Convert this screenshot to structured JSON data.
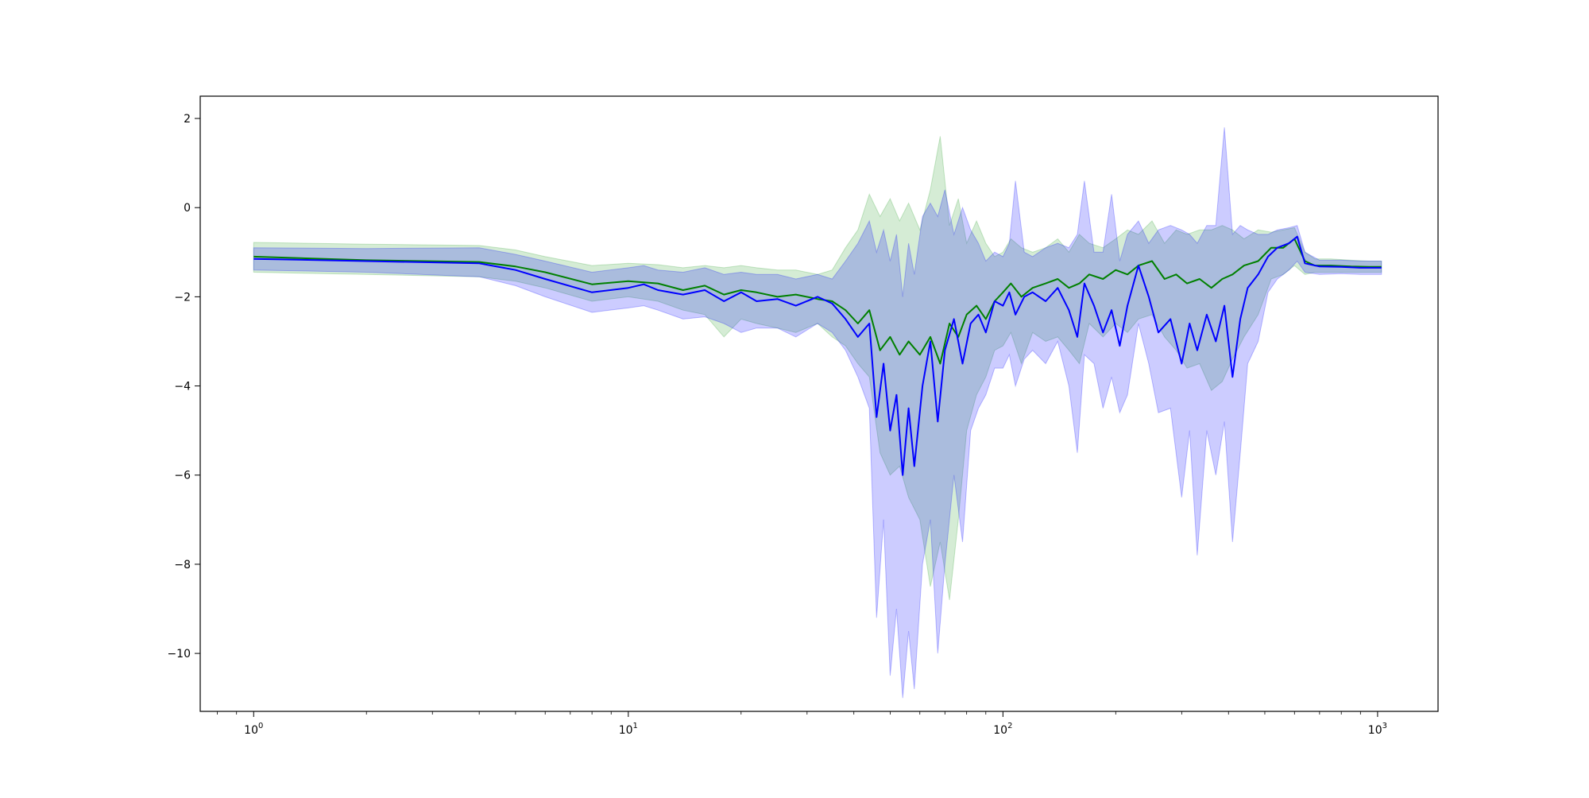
{
  "chart_data": {
    "type": "line",
    "title": "",
    "xlabel": "",
    "ylabel": "",
    "xscale": "log",
    "xlim": [
      0.72,
      1450
    ],
    "ylim": [
      -11.3,
      2.5
    ],
    "grid": false,
    "legend": "none",
    "x_ticks": [
      {
        "value": 1,
        "base": "10",
        "exp": "0"
      },
      {
        "value": 10,
        "base": "10",
        "exp": "1"
      },
      {
        "value": 100,
        "base": "10",
        "exp": "2"
      },
      {
        "value": 1000,
        "base": "10",
        "exp": "3"
      }
    ],
    "y_ticks": [
      {
        "value": 2,
        "label": "2"
      },
      {
        "value": 0,
        "label": "0"
      },
      {
        "value": -2,
        "label": "−2"
      },
      {
        "value": -4,
        "label": "−4"
      },
      {
        "value": -6,
        "label": "−6"
      },
      {
        "value": -8,
        "label": "−8"
      },
      {
        "value": -10,
        "label": "−10"
      }
    ],
    "series": [
      {
        "color": "#008000",
        "band_color": "#2ca02c",
        "points": [
          [
            1,
            -1.1,
            -1.45,
            -0.78
          ],
          [
            2,
            -1.18,
            -1.5,
            -0.82
          ],
          [
            4,
            -1.22,
            -1.55,
            -0.85
          ],
          [
            5,
            -1.32,
            -1.65,
            -0.95
          ],
          [
            6,
            -1.45,
            -1.8,
            -1.1
          ],
          [
            8,
            -1.72,
            -2.1,
            -1.3
          ],
          [
            10,
            -1.65,
            -2.0,
            -1.25
          ],
          [
            12,
            -1.7,
            -2.1,
            -1.28
          ],
          [
            14,
            -1.85,
            -2.3,
            -1.35
          ],
          [
            16,
            -1.75,
            -2.4,
            -1.3
          ],
          [
            18,
            -1.95,
            -2.9,
            -1.35
          ],
          [
            20,
            -1.85,
            -2.5,
            -1.3
          ],
          [
            22,
            -1.9,
            -2.6,
            -1.35
          ],
          [
            25,
            -2.0,
            -2.7,
            -1.4
          ],
          [
            28,
            -1.95,
            -2.8,
            -1.4
          ],
          [
            32,
            -2.05,
            -2.6,
            -1.5
          ],
          [
            35,
            -2.1,
            -2.9,
            -1.4
          ],
          [
            38,
            -2.3,
            -3.1,
            -0.9
          ],
          [
            41,
            -2.6,
            -3.5,
            -0.5
          ],
          [
            44,
            -2.3,
            -3.8,
            0.3
          ],
          [
            47,
            -3.2,
            -5.5,
            -0.2
          ],
          [
            50,
            -2.9,
            -6.0,
            0.2
          ],
          [
            53,
            -3.3,
            -5.8,
            -0.3
          ],
          [
            56,
            -3.0,
            -6.5,
            0.1
          ],
          [
            60,
            -3.3,
            -7.0,
            -0.5
          ],
          [
            64,
            -2.9,
            -8.5,
            0.4
          ],
          [
            68,
            -3.5,
            -7.5,
            1.6
          ],
          [
            72,
            -2.6,
            -8.8,
            -0.4
          ],
          [
            76,
            -2.9,
            -7.0,
            0.2
          ],
          [
            80,
            -2.4,
            -5.0,
            -0.8
          ],
          [
            85,
            -2.2,
            -4.2,
            -0.3
          ],
          [
            90,
            -2.5,
            -3.8,
            -0.8
          ],
          [
            95,
            -2.1,
            -3.2,
            -1.1
          ],
          [
            100,
            -1.9,
            -3.1,
            -1.0
          ],
          [
            105,
            -1.7,
            -2.8,
            -0.7
          ],
          [
            112,
            -2.0,
            -3.5,
            -0.9
          ],
          [
            120,
            -1.8,
            -2.8,
            -1.0
          ],
          [
            130,
            -1.7,
            -3.0,
            -0.9
          ],
          [
            140,
            -1.6,
            -2.9,
            -0.7
          ],
          [
            150,
            -1.8,
            -3.2,
            -1.0
          ],
          [
            160,
            -1.7,
            -3.5,
            -0.6
          ],
          [
            170,
            -1.5,
            -2.6,
            -0.8
          ],
          [
            185,
            -1.6,
            -2.9,
            -0.9
          ],
          [
            200,
            -1.4,
            -2.6,
            -0.7
          ],
          [
            215,
            -1.5,
            -2.8,
            -0.5
          ],
          [
            230,
            -1.3,
            -2.5,
            -0.6
          ],
          [
            250,
            -1.2,
            -2.4,
            -0.3
          ],
          [
            270,
            -1.6,
            -2.9,
            -0.8
          ],
          [
            290,
            -1.5,
            -3.2,
            -0.5
          ],
          [
            310,
            -1.7,
            -3.6,
            -0.6
          ],
          [
            335,
            -1.6,
            -3.5,
            -0.5
          ],
          [
            360,
            -1.8,
            -4.1,
            -0.5
          ],
          [
            385,
            -1.6,
            -3.9,
            -0.4
          ],
          [
            410,
            -1.5,
            -3.4,
            -0.5
          ],
          [
            440,
            -1.3,
            -2.9,
            -0.7
          ],
          [
            480,
            -1.2,
            -2.4,
            -0.5
          ],
          [
            520,
            -0.9,
            -1.6,
            -0.55
          ],
          [
            560,
            -0.9,
            -1.5,
            -0.5
          ],
          [
            600,
            -0.7,
            -1.3,
            -0.45
          ],
          [
            640,
            -1.2,
            -1.5,
            -1.0
          ],
          [
            680,
            -1.3,
            -1.45,
            -1.15
          ],
          [
            750,
            -1.3,
            -1.45,
            -1.15
          ],
          [
            850,
            -1.32,
            -1.45,
            -1.18
          ],
          [
            950,
            -1.33,
            -1.45,
            -1.2
          ],
          [
            1024,
            -1.33,
            -1.45,
            -1.2
          ]
        ]
      },
      {
        "color": "#0000ff",
        "band_color": "#0000ff",
        "points": [
          [
            1,
            -1.15,
            -1.4,
            -0.9
          ],
          [
            2,
            -1.2,
            -1.45,
            -0.92
          ],
          [
            4,
            -1.25,
            -1.55,
            -0.9
          ],
          [
            5,
            -1.4,
            -1.75,
            -1.05
          ],
          [
            6,
            -1.6,
            -2.0,
            -1.2
          ],
          [
            8,
            -1.9,
            -2.35,
            -1.45
          ],
          [
            10,
            -1.8,
            -2.25,
            -1.35
          ],
          [
            11,
            -1.72,
            -2.2,
            -1.3
          ],
          [
            12,
            -1.85,
            -2.3,
            -1.4
          ],
          [
            14,
            -1.95,
            -2.5,
            -1.45
          ],
          [
            16,
            -1.85,
            -2.45,
            -1.35
          ],
          [
            18,
            -2.1,
            -2.6,
            -1.5
          ],
          [
            20,
            -1.9,
            -2.8,
            -1.45
          ],
          [
            22,
            -2.1,
            -2.7,
            -1.5
          ],
          [
            25,
            -2.05,
            -2.7,
            -1.5
          ],
          [
            28,
            -2.2,
            -2.9,
            -1.6
          ],
          [
            32,
            -2.0,
            -2.6,
            -1.5
          ],
          [
            35,
            -2.15,
            -2.8,
            -1.6
          ],
          [
            38,
            -2.5,
            -3.2,
            -1.2
          ],
          [
            41,
            -2.9,
            -3.8,
            -0.8
          ],
          [
            44,
            -2.6,
            -4.5,
            -0.3
          ],
          [
            46,
            -4.7,
            -9.2,
            -1.0
          ],
          [
            48,
            -3.5,
            -7.0,
            -0.5
          ],
          [
            50,
            -5.0,
            -10.5,
            -1.2
          ],
          [
            52,
            -4.2,
            -9.0,
            -0.6
          ],
          [
            54,
            -6.0,
            -11.0,
            -2.0
          ],
          [
            56,
            -4.5,
            -9.5,
            -0.8
          ],
          [
            58,
            -5.8,
            -10.8,
            -1.5
          ],
          [
            61,
            -4.0,
            -8.0,
            -0.2
          ],
          [
            64,
            -3.0,
            -7.0,
            0.1
          ],
          [
            67,
            -4.8,
            -10.0,
            -0.2
          ],
          [
            70,
            -3.2,
            -8.0,
            0.4
          ],
          [
            74,
            -2.5,
            -6.0,
            -0.6
          ],
          [
            78,
            -3.5,
            -7.5,
            0.0
          ],
          [
            82,
            -2.6,
            -5.0,
            -0.5
          ],
          [
            86,
            -2.4,
            -4.5,
            -0.8
          ],
          [
            90,
            -2.8,
            -4.2,
            -1.2
          ],
          [
            95,
            -2.1,
            -3.6,
            -1.0
          ],
          [
            100,
            -2.2,
            -3.6,
            -1.1
          ],
          [
            104,
            -1.9,
            -3.3,
            -0.8
          ],
          [
            108,
            -2.4,
            -4.0,
            0.6
          ],
          [
            114,
            -2.0,
            -3.4,
            -1.0
          ],
          [
            120,
            -1.9,
            -3.2,
            -1.1
          ],
          [
            130,
            -2.1,
            -3.5,
            -0.9
          ],
          [
            140,
            -1.8,
            -3.0,
            -0.8
          ],
          [
            150,
            -2.3,
            -4.0,
            -0.9
          ],
          [
            158,
            -2.9,
            -5.5,
            -0.6
          ],
          [
            165,
            -1.7,
            -3.3,
            0.6
          ],
          [
            175,
            -2.2,
            -3.5,
            -1.0
          ],
          [
            185,
            -2.8,
            -4.5,
            -1.0
          ],
          [
            195,
            -2.3,
            -3.8,
            0.3
          ],
          [
            205,
            -3.1,
            -4.6,
            -1.2
          ],
          [
            215,
            -2.2,
            -4.2,
            -0.6
          ],
          [
            230,
            -1.3,
            -2.6,
            -0.3
          ],
          [
            245,
            -2.0,
            -3.5,
            -0.8
          ],
          [
            260,
            -2.8,
            -4.6,
            -0.5
          ],
          [
            280,
            -2.5,
            -4.5,
            -0.4
          ],
          [
            300,
            -3.5,
            -6.5,
            -0.5
          ],
          [
            315,
            -2.6,
            -5.0,
            -0.6
          ],
          [
            330,
            -3.2,
            -7.8,
            -0.8
          ],
          [
            350,
            -2.4,
            -5.0,
            -0.4
          ],
          [
            370,
            -3.0,
            -6.0,
            -0.4
          ],
          [
            390,
            -2.2,
            -4.8,
            1.8
          ],
          [
            410,
            -3.8,
            -7.5,
            -0.6
          ],
          [
            430,
            -2.5,
            -5.5,
            -0.4
          ],
          [
            450,
            -1.8,
            -3.5,
            -0.5
          ],
          [
            480,
            -1.5,
            -3.0,
            -0.6
          ],
          [
            510,
            -1.1,
            -1.9,
            -0.6
          ],
          [
            540,
            -0.9,
            -1.6,
            -0.5
          ],
          [
            580,
            -0.8,
            -1.4,
            -0.45
          ],
          [
            610,
            -0.65,
            -1.2,
            -0.4
          ],
          [
            640,
            -1.25,
            -1.45,
            -1.0
          ],
          [
            700,
            -1.32,
            -1.5,
            -1.18
          ],
          [
            800,
            -1.33,
            -1.48,
            -1.18
          ],
          [
            900,
            -1.35,
            -1.5,
            -1.2
          ],
          [
            1024,
            -1.35,
            -1.5,
            -1.2
          ]
        ]
      }
    ]
  }
}
